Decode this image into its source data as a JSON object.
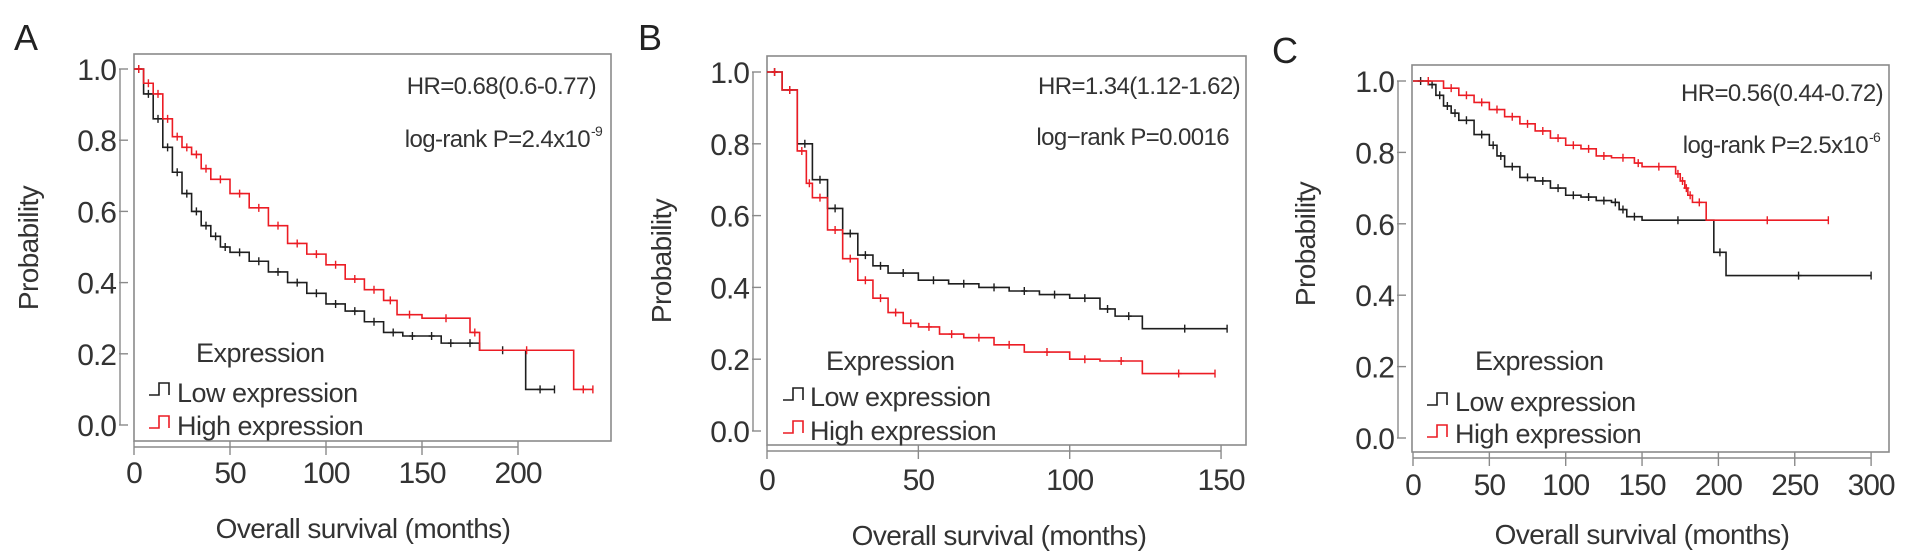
{
  "colors": {
    "low": "#1e1e1e",
    "high": "#ec1c24",
    "frame": "#8a8a8a"
  },
  "chart_data": [
    {
      "panel": "A",
      "type": "line",
      "xlabel": "Overall survival (months)",
      "ylabel": "Probability",
      "xticks": [
        0,
        50,
        100,
        150,
        200
      ],
      "yticks": [
        "0.0",
        "0.2",
        "0.4",
        "0.6",
        "0.8",
        "1.0"
      ],
      "ylim": [
        0,
        1
      ],
      "hr_text": "HR=0.68(0.6-0.77)",
      "logrank_text": "log-rank P=2.4x10",
      "logrank_exp": "-9",
      "legend_title": "Expression",
      "legend_position": "bottom-left",
      "series": [
        {
          "name": "Low expression",
          "color": "#1e1e1e",
          "x": [
            0,
            5,
            10,
            15,
            20,
            25,
            30,
            35,
            40,
            45,
            50,
            60,
            70,
            80,
            90,
            100,
            110,
            120,
            130,
            140,
            150,
            160,
            170,
            180,
            204,
            219
          ],
          "y": [
            1.0,
            0.93,
            0.86,
            0.78,
            0.71,
            0.65,
            0.6,
            0.56,
            0.53,
            0.5,
            0.485,
            0.46,
            0.43,
            0.4,
            0.37,
            0.34,
            0.32,
            0.29,
            0.26,
            0.25,
            0.25,
            0.23,
            0.23,
            0.21,
            0.1,
            0.1
          ]
        },
        {
          "name": "High expression",
          "color": "#ec1c24",
          "x": [
            0,
            5,
            10,
            15,
            20,
            25,
            30,
            35,
            40,
            50,
            60,
            70,
            80,
            90,
            100,
            110,
            120,
            130,
            137,
            150,
            175,
            180,
            229,
            239
          ],
          "y": [
            1.0,
            0.96,
            0.93,
            0.86,
            0.81,
            0.78,
            0.76,
            0.72,
            0.69,
            0.65,
            0.61,
            0.56,
            0.51,
            0.48,
            0.45,
            0.41,
            0.38,
            0.35,
            0.31,
            0.3,
            0.26,
            0.21,
            0.1,
            0.1
          ]
        }
      ]
    },
    {
      "panel": "B",
      "type": "line",
      "xlabel": "Overall survival (months)",
      "ylabel": "Probability",
      "xticks": [
        0,
        50,
        100,
        150
      ],
      "yticks": [
        "0.0",
        "0.2",
        "0.4",
        "0.6",
        "0.8",
        "1.0"
      ],
      "ylim": [
        0,
        1
      ],
      "hr_text": "HR=1.34(1.12-1.62)",
      "logrank_text": "log−rank P=0.0016",
      "logrank_exp": "",
      "legend_title": "Expression",
      "legend_position": "bottom-left",
      "series": [
        {
          "name": "Low expression",
          "color": "#1e1e1e",
          "x": [
            0,
            5,
            10,
            15,
            20,
            25,
            30,
            35,
            40,
            50,
            60,
            70,
            80,
            90,
            100,
            110,
            115,
            124,
            152
          ],
          "y": [
            1.0,
            0.95,
            0.8,
            0.7,
            0.62,
            0.55,
            0.49,
            0.46,
            0.44,
            0.42,
            0.41,
            0.4,
            0.39,
            0.38,
            0.37,
            0.34,
            0.32,
            0.285,
            0.285
          ]
        },
        {
          "name": "High expression",
          "color": "#ec1c24",
          "x": [
            0,
            5,
            10,
            13,
            15,
            20,
            25,
            30,
            35,
            40,
            45,
            50,
            57,
            65,
            75,
            85,
            100,
            110,
            124,
            148
          ],
          "y": [
            1.0,
            0.95,
            0.78,
            0.69,
            0.65,
            0.56,
            0.48,
            0.42,
            0.37,
            0.33,
            0.3,
            0.29,
            0.27,
            0.26,
            0.24,
            0.22,
            0.2,
            0.195,
            0.16,
            0.16
          ]
        }
      ]
    },
    {
      "panel": "C",
      "type": "line",
      "xlabel": "Overall survival (months)",
      "ylabel": "Probability",
      "xticks": [
        0,
        50,
        100,
        150,
        200,
        250,
        300
      ],
      "yticks": [
        "0.0",
        "0.2",
        "0.4",
        "0.6",
        "0.8",
        "1.0"
      ],
      "ylim": [
        0,
        1
      ],
      "hr_text": "HR=0.56(0.44-0.72)",
      "logrank_text": "log-rank P=2.5x10",
      "logrank_exp": "-6",
      "legend_title": "Expression",
      "legend_position": "bottom-left",
      "series": [
        {
          "name": "Low expression",
          "color": "#1e1e1e",
          "x": [
            0,
            10,
            15,
            20,
            25,
            30,
            40,
            50,
            55,
            60,
            70,
            80,
            90,
            100,
            110,
            120,
            130,
            135,
            140,
            150,
            197,
            205,
            300
          ],
          "y": [
            1.0,
            0.99,
            0.96,
            0.93,
            0.91,
            0.89,
            0.85,
            0.82,
            0.79,
            0.76,
            0.73,
            0.72,
            0.7,
            0.68,
            0.675,
            0.665,
            0.66,
            0.64,
            0.62,
            0.61,
            0.52,
            0.455,
            0.455
          ]
        },
        {
          "name": "High expression",
          "color": "#ec1c24",
          "x": [
            0,
            20,
            30,
            40,
            50,
            60,
            70,
            80,
            90,
            100,
            110,
            120,
            130,
            145,
            150,
            172,
            175,
            178,
            180,
            183,
            192,
            272
          ],
          "y": [
            1.0,
            0.98,
            0.96,
            0.94,
            0.92,
            0.9,
            0.88,
            0.86,
            0.84,
            0.82,
            0.81,
            0.79,
            0.785,
            0.77,
            0.76,
            0.74,
            0.72,
            0.7,
            0.68,
            0.66,
            0.61,
            0.61
          ]
        }
      ]
    }
  ]
}
